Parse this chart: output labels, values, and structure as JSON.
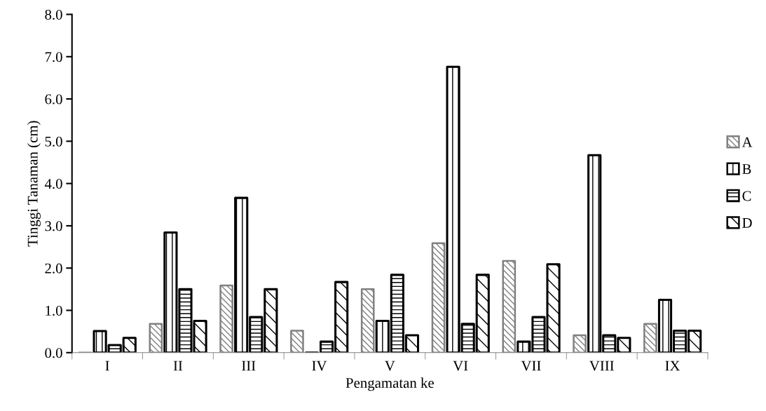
{
  "chart_data": {
    "type": "bar",
    "xlabel": "Pengamatan ke",
    "ylabel": "Tinggi Tanaman (cm)",
    "categories": [
      "I",
      "II",
      "III",
      "IV",
      "V",
      "VI",
      "VII",
      "VIII",
      "IX"
    ],
    "series": [
      {
        "name": "A",
        "color": "#808080",
        "values": [
          0,
          0.68,
          1.59,
          0.52,
          1.5,
          2.59,
          2.17,
          0.41,
          0.68
        ]
      },
      {
        "name": "B",
        "color": "#000000",
        "values": [
          0.51,
          2.84,
          3.66,
          0,
          0.75,
          6.76,
          0.26,
          4.67,
          1.25
        ]
      },
      {
        "name": "C",
        "color": "#000000",
        "values": [
          0.18,
          1.5,
          0.84,
          0.26,
          1.84,
          0.68,
          0.84,
          0.41,
          0.52
        ]
      },
      {
        "name": "D",
        "color": "#000000",
        "values": [
          0.35,
          0.75,
          1.5,
          1.67,
          0.41,
          1.84,
          2.09,
          0.35,
          0.52
        ]
      }
    ],
    "ylim": [
      0,
      8
    ],
    "yticks": [
      {
        "value": 0,
        "label": "0.0"
      },
      {
        "value": 1,
        "label": "1.0"
      },
      {
        "value": 2,
        "label": "2.0"
      },
      {
        "value": 3,
        "label": "3.0"
      },
      {
        "value": 4,
        "label": "4.0"
      },
      {
        "value": 5,
        "label": "5.0"
      },
      {
        "value": 6,
        "label": "6.0"
      },
      {
        "value": 7,
        "label": "7.0"
      },
      {
        "value": 8,
        "label": "8.0"
      }
    ],
    "grid": false,
    "legend": "right"
  }
}
